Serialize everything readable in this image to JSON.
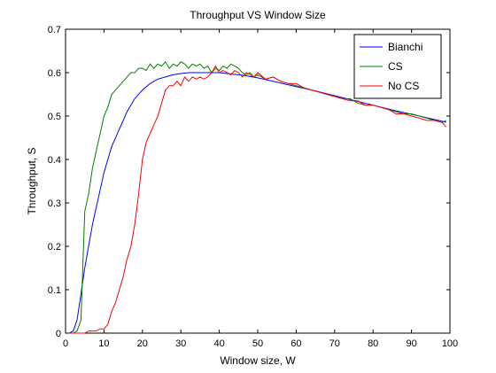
{
  "chart_data": {
    "type": "line",
    "title": "Throughput VS Window Size",
    "xlabel": "Window size, W",
    "ylabel": "Throughput, S",
    "xlim": [
      0,
      100
    ],
    "ylim": [
      0,
      0.7
    ],
    "xticks": [
      0,
      10,
      20,
      30,
      40,
      50,
      60,
      70,
      80,
      90,
      100
    ],
    "yticks": [
      0,
      0.1,
      0.2,
      0.3,
      0.4,
      0.5,
      0.6,
      0.7
    ],
    "xtick_labels": [
      "0",
      "10",
      "20",
      "30",
      "40",
      "50",
      "60",
      "70",
      "80",
      "90",
      "100"
    ],
    "ytick_labels": [
      "0",
      "0.1",
      "0.2",
      "0.3",
      "0.4",
      "0.5",
      "0.6",
      "0.7"
    ],
    "grid": false,
    "legend_position": "top-right",
    "series": [
      {
        "name": "Bianchi",
        "color": "#0000ff",
        "x": [
          1,
          2,
          3,
          4,
          5,
          6,
          7,
          8,
          9,
          10,
          12,
          14,
          16,
          18,
          20,
          22,
          24,
          26,
          28,
          30,
          32,
          34,
          36,
          38,
          40,
          42,
          44,
          46,
          48,
          50,
          55,
          60,
          65,
          70,
          75,
          80,
          85,
          90,
          95,
          99
        ],
        "y": [
          0.0,
          0.005,
          0.03,
          0.09,
          0.15,
          0.2,
          0.25,
          0.29,
          0.33,
          0.37,
          0.43,
          0.47,
          0.51,
          0.54,
          0.56,
          0.575,
          0.585,
          0.59,
          0.595,
          0.598,
          0.6,
          0.6,
          0.6,
          0.6,
          0.6,
          0.598,
          0.596,
          0.594,
          0.591,
          0.588,
          0.578,
          0.568,
          0.558,
          0.547,
          0.536,
          0.525,
          0.514,
          0.504,
          0.494,
          0.486
        ]
      },
      {
        "name": "CS",
        "color": "#008000",
        "x": [
          1,
          2,
          3,
          4,
          5,
          6,
          7,
          8,
          9,
          10,
          11,
          12,
          13,
          14,
          15,
          16,
          17,
          18,
          19,
          20,
          21,
          22,
          23,
          24,
          25,
          26,
          27,
          28,
          29,
          30,
          31,
          32,
          33,
          34,
          35,
          36,
          37,
          38,
          39,
          40,
          41,
          42,
          43,
          44,
          45,
          46,
          47,
          48,
          49,
          50,
          52,
          54,
          56,
          58,
          60,
          62,
          64,
          66,
          68,
          70,
          72,
          74,
          76,
          78,
          80,
          82,
          84,
          86,
          88,
          90,
          92,
          94,
          96,
          98,
          99
        ],
        "y": [
          0.0,
          0.0,
          0.005,
          0.03,
          0.28,
          0.32,
          0.38,
          0.42,
          0.46,
          0.5,
          0.52,
          0.55,
          0.56,
          0.57,
          0.58,
          0.59,
          0.6,
          0.6,
          0.61,
          0.61,
          0.605,
          0.62,
          0.61,
          0.62,
          0.615,
          0.625,
          0.61,
          0.62,
          0.615,
          0.625,
          0.62,
          0.61,
          0.62,
          0.615,
          0.62,
          0.61,
          0.615,
          0.6,
          0.61,
          0.605,
          0.615,
          0.61,
          0.62,
          0.615,
          0.61,
          0.6,
          0.595,
          0.6,
          0.59,
          0.595,
          0.585,
          0.59,
          0.58,
          0.575,
          0.57,
          0.565,
          0.56,
          0.555,
          0.55,
          0.545,
          0.54,
          0.54,
          0.53,
          0.525,
          0.525,
          0.52,
          0.515,
          0.51,
          0.505,
          0.505,
          0.5,
          0.495,
          0.49,
          0.485,
          0.49
        ]
      },
      {
        "name": "No CS",
        "color": "#ff0000",
        "x": [
          1,
          2,
          3,
          4,
          5,
          6,
          7,
          8,
          9,
          10,
          11,
          12,
          13,
          14,
          15,
          16,
          17,
          18,
          19,
          20,
          21,
          22,
          23,
          24,
          25,
          26,
          27,
          28,
          29,
          30,
          31,
          32,
          33,
          34,
          35,
          36,
          37,
          38,
          39,
          40,
          41,
          42,
          43,
          44,
          45,
          46,
          47,
          48,
          49,
          50,
          52,
          54,
          56,
          58,
          60,
          62,
          64,
          66,
          68,
          70,
          72,
          74,
          76,
          78,
          80,
          82,
          84,
          86,
          88,
          90,
          92,
          94,
          96,
          98,
          99
        ],
        "y": [
          0.0,
          0.0,
          0.0,
          0.0,
          0.0,
          0.005,
          0.005,
          0.005,
          0.01,
          0.01,
          0.02,
          0.05,
          0.07,
          0.1,
          0.13,
          0.17,
          0.2,
          0.25,
          0.32,
          0.4,
          0.44,
          0.46,
          0.48,
          0.5,
          0.53,
          0.56,
          0.57,
          0.57,
          0.58,
          0.57,
          0.59,
          0.58,
          0.59,
          0.585,
          0.59,
          0.585,
          0.59,
          0.6,
          0.615,
          0.6,
          0.605,
          0.6,
          0.595,
          0.605,
          0.6,
          0.59,
          0.6,
          0.595,
          0.59,
          0.6,
          0.585,
          0.59,
          0.58,
          0.575,
          0.575,
          0.565,
          0.56,
          0.555,
          0.55,
          0.545,
          0.54,
          0.535,
          0.535,
          0.525,
          0.525,
          0.52,
          0.515,
          0.505,
          0.505,
          0.5,
          0.495,
          0.49,
          0.49,
          0.485,
          0.475
        ]
      }
    ]
  }
}
